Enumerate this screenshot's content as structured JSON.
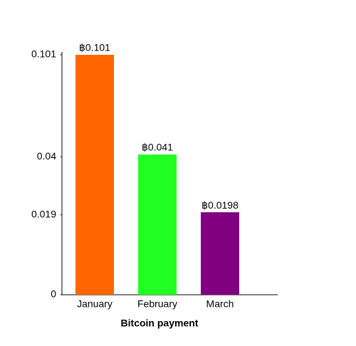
{
  "chart_data": {
    "type": "bar",
    "xlabel": "Bitcoin payment",
    "categories": [
      "January",
      "February",
      "March"
    ],
    "values": [
      0.101,
      0.041,
      0.0198
    ],
    "value_labels": [
      "฿0.101",
      "฿0.041",
      "฿0.0198"
    ],
    "colors": [
      "#ff6600",
      "#22ff22",
      "#800080"
    ],
    "ylim": [
      0,
      0.101
    ],
    "yticks": [
      0,
      0.019,
      0.04,
      0.101
    ],
    "yscale": "symlog",
    "grid": false
  }
}
